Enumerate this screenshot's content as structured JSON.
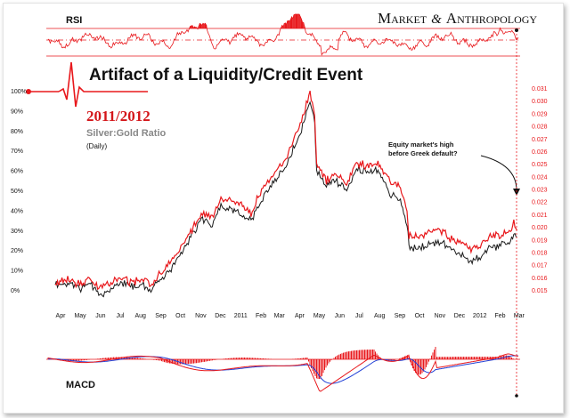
{
  "colors": {
    "red": "#e8181c",
    "black": "#1a1a1a",
    "blue": "#1f3fd6",
    "grid": "#d8d8d8"
  },
  "brand": {
    "m": "M",
    "arket": "ARKET",
    "amp": "&",
    "a": "A",
    "nthropology": "NTHROPOLOGY"
  },
  "title": "Artifact of a Liquidity/Credit Event",
  "subtitle": "2011/2012",
  "ratio_label": "Silver:Gold Ratio",
  "period_label": "(Daily)",
  "annotation": "Equity market's high before Greek default?",
  "chart_data": [
    {
      "type": "line",
      "title": "RSI",
      "reference_lines": [
        "overbought",
        "midline",
        "oversold"
      ],
      "shading": "above overbought / below oversold"
    },
    {
      "type": "line",
      "x": [
        "2010-04-01",
        "2010-05-01",
        "2010-06-01",
        "2010-07-01",
        "2010-08-01",
        "2010-09-01",
        "2010-10-01",
        "2010-11-01",
        "2010-12-01",
        "2011-01-01",
        "2011-02-01",
        "2011-03-01",
        "2011-04-01",
        "2011-05-01",
        "2011-06-01",
        "2011-07-01",
        "2011-08-01",
        "2011-09-01",
        "2011-10-01",
        "2011-11-01",
        "2011-12-01",
        "2012-01-01",
        "2012-02-01",
        "2012-03-01"
      ],
      "x_tick_labels": [
        "Apr",
        "May",
        "Jun",
        "Jul",
        "Aug",
        "Sep",
        "Oct",
        "Nov",
        "Dec",
        "2011",
        "Feb",
        "Mar",
        "Apr",
        "May",
        "Jun",
        "Jul",
        "Aug",
        "Sep",
        "Oct",
        "Nov",
        "Dec",
        "2012",
        "Feb",
        "Mar"
      ],
      "left_axis": {
        "ticks": [
          "0%",
          "10%",
          "20%",
          "30%",
          "40%",
          "50%",
          "60%",
          "70%",
          "80%",
          "90%",
          "100%"
        ],
        "range": [
          0,
          100
        ]
      },
      "right_axis": {
        "ticks": [
          "0.015",
          "0.016",
          "0.017",
          "0.018",
          "0.019",
          "0.020",
          "0.021",
          "0.022",
          "0.023",
          "0.024",
          "0.025",
          "0.026",
          "0.027",
          "0.028",
          "0.029",
          "0.030",
          "0.031"
        ]
      },
      "series": [
        {
          "color": "red",
          "axis": "right",
          "points": [
            [
              "2010-04-01",
              0.0156
            ],
            [
              "2010-04-20",
              0.016
            ],
            [
              "2010-05-10",
              0.0155
            ],
            [
              "2010-05-25",
              0.0159
            ],
            [
              "2010-06-10",
              0.0153
            ],
            [
              "2010-06-25",
              0.0156
            ],
            [
              "2010-07-10",
              0.016
            ],
            [
              "2010-07-25",
              0.0157
            ],
            [
              "2010-08-10",
              0.0159
            ],
            [
              "2010-08-25",
              0.0155
            ],
            [
              "2010-09-10",
              0.0164
            ],
            [
              "2010-09-25",
              0.0172
            ],
            [
              "2010-10-10",
              0.0185
            ],
            [
              "2010-10-25",
              0.0197
            ],
            [
              "2010-11-10",
              0.0212
            ],
            [
              "2010-11-25",
              0.0207
            ],
            [
              "2010-12-10",
              0.0223
            ],
            [
              "2010-12-25",
              0.0221
            ],
            [
              "2011-01-10",
              0.0218
            ],
            [
              "2011-01-25",
              0.0212
            ],
            [
              "2011-02-10",
              0.023
            ],
            [
              "2011-02-25",
              0.024
            ],
            [
              "2011-03-10",
              0.0249
            ],
            [
              "2011-03-25",
              0.0262
            ],
            [
              "2011-04-10",
              0.0282
            ],
            [
              "2011-04-25",
              0.0308
            ],
            [
              "2011-05-02",
              0.0288
            ],
            [
              "2011-05-05",
              0.025
            ],
            [
              "2011-05-20",
              0.0238
            ],
            [
              "2011-06-05",
              0.0242
            ],
            [
              "2011-06-20",
              0.0235
            ],
            [
              "2011-07-05",
              0.0252
            ],
            [
              "2011-07-20",
              0.0248
            ],
            [
              "2011-08-05",
              0.0252
            ],
            [
              "2011-08-15",
              0.0245
            ],
            [
              "2011-08-25",
              0.0237
            ],
            [
              "2011-09-10",
              0.0232
            ],
            [
              "2011-09-20",
              0.0212
            ],
            [
              "2011-09-23",
              0.0194
            ],
            [
              "2011-10-10",
              0.0193
            ],
            [
              "2011-10-25",
              0.0197
            ],
            [
              "2011-11-10",
              0.0199
            ],
            [
              "2011-11-25",
              0.0191
            ],
            [
              "2011-12-10",
              0.0189
            ],
            [
              "2011-12-25",
              0.0182
            ],
            [
              "2012-01-10",
              0.0187
            ],
            [
              "2012-01-25",
              0.0193
            ],
            [
              "2012-02-10",
              0.0194
            ],
            [
              "2012-02-25",
              0.0197
            ],
            [
              "2012-03-01",
              0.0204
            ],
            [
              "2012-03-06",
              0.0198
            ]
          ]
        },
        {
          "color": "black",
          "axis": "left",
          "points": [
            [
              "2010-04-01",
              3
            ],
            [
              "2010-04-20",
              4
            ],
            [
              "2010-05-10",
              1
            ],
            [
              "2010-05-25",
              3
            ],
            [
              "2010-06-10",
              -2
            ],
            [
              "2010-06-25",
              1
            ],
            [
              "2010-07-10",
              4
            ],
            [
              "2010-07-25",
              2
            ],
            [
              "2010-08-10",
              3
            ],
            [
              "2010-08-25",
              0
            ],
            [
              "2010-09-10",
              6
            ],
            [
              "2010-09-25",
              11
            ],
            [
              "2010-10-10",
              19
            ],
            [
              "2010-10-25",
              27
            ],
            [
              "2010-11-10",
              36
            ],
            [
              "2010-11-25",
              33
            ],
            [
              "2010-12-10",
              43
            ],
            [
              "2010-12-25",
              41
            ],
            [
              "2011-01-10",
              39
            ],
            [
              "2011-01-25",
              35
            ],
            [
              "2011-02-10",
              46
            ],
            [
              "2011-02-25",
              53
            ],
            [
              "2011-03-10",
              59
            ],
            [
              "2011-03-25",
              67
            ],
            [
              "2011-04-10",
              79
            ],
            [
              "2011-04-25",
              96
            ],
            [
              "2011-05-02",
              84
            ],
            [
              "2011-05-05",
              61
            ],
            [
              "2011-05-20",
              53
            ],
            [
              "2011-06-05",
              55
            ],
            [
              "2011-06-20",
              50
            ],
            [
              "2011-07-05",
              62
            ],
            [
              "2011-07-20",
              59
            ],
            [
              "2011-08-05",
              61
            ],
            [
              "2011-08-15",
              55
            ],
            [
              "2011-08-25",
              49
            ],
            [
              "2011-09-10",
              45
            ],
            [
              "2011-09-20",
              34
            ],
            [
              "2011-09-23",
              22
            ],
            [
              "2011-10-10",
              21
            ],
            [
              "2011-10-25",
              24
            ],
            [
              "2011-11-10",
              25
            ],
            [
              "2011-11-25",
              21
            ],
            [
              "2011-12-10",
              19
            ],
            [
              "2011-12-25",
              14
            ],
            [
              "2012-01-10",
              18
            ],
            [
              "2012-01-25",
              22
            ],
            [
              "2012-02-10",
              23
            ],
            [
              "2012-02-25",
              25
            ],
            [
              "2012-03-01",
              29
            ],
            [
              "2012-03-06",
              27
            ]
          ]
        }
      ]
    },
    {
      "type": "line",
      "title": "MACD",
      "series": [
        {
          "color": "red",
          "style": "line"
        },
        {
          "color": "blue",
          "style": "line"
        },
        {
          "color": "red",
          "style": "histogram"
        }
      ]
    }
  ]
}
